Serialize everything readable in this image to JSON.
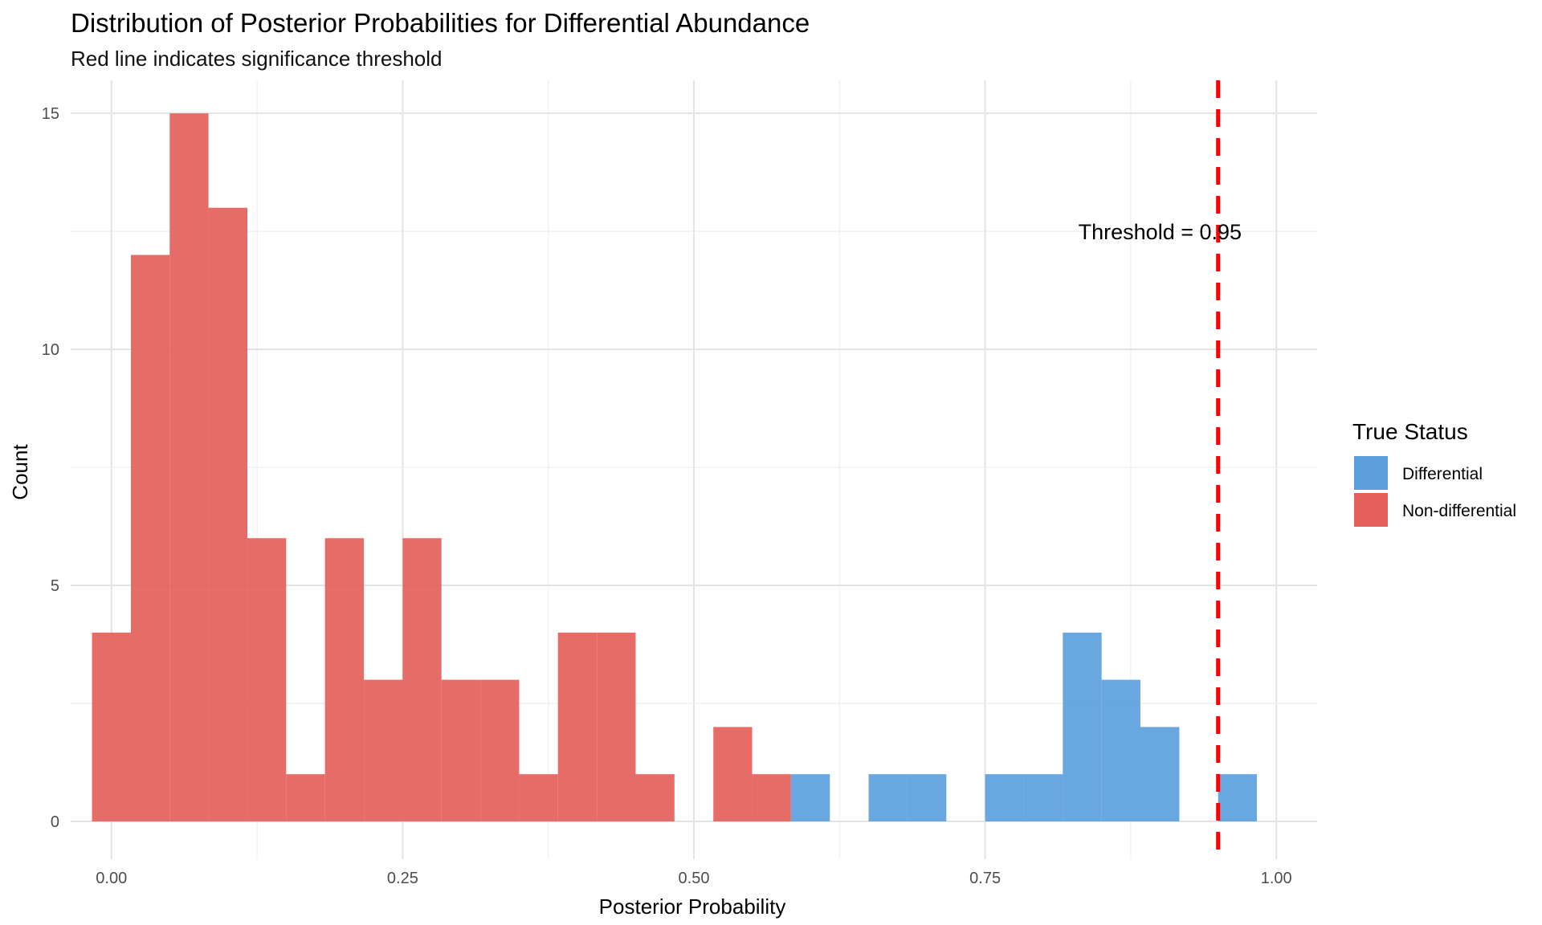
{
  "chart_data": {
    "type": "bar",
    "title": "Distribution of Posterior Probabilities for Differential Abundance",
    "subtitle": "Red line indicates significance threshold",
    "xlabel": "Posterior Probability",
    "ylabel": "Count",
    "xlim": [
      -0.035,
      1.035
    ],
    "ylim": [
      -0.8,
      15.7
    ],
    "x_ticks": [
      0.0,
      0.25,
      0.5,
      0.75,
      1.0
    ],
    "x_tick_labels": [
      "0.00",
      "0.25",
      "0.50",
      "0.75",
      "1.00"
    ],
    "y_ticks": [
      0,
      5,
      10,
      15
    ],
    "y_tick_labels": [
      "0",
      "5",
      "10",
      "15"
    ],
    "grid": true,
    "bins": [
      {
        "x0": -0.0167,
        "x1": 0.0167,
        "non": 4,
        "diff": 0
      },
      {
        "x0": 0.0167,
        "x1": 0.05,
        "non": 12,
        "diff": 0
      },
      {
        "x0": 0.05,
        "x1": 0.0833,
        "non": 15,
        "diff": 0
      },
      {
        "x0": 0.0833,
        "x1": 0.1167,
        "non": 13,
        "diff": 0
      },
      {
        "x0": 0.1167,
        "x1": 0.15,
        "non": 6,
        "diff": 0
      },
      {
        "x0": 0.15,
        "x1": 0.1833,
        "non": 1,
        "diff": 0
      },
      {
        "x0": 0.1833,
        "x1": 0.2167,
        "non": 6,
        "diff": 0
      },
      {
        "x0": 0.2167,
        "x1": 0.25,
        "non": 3,
        "diff": 0
      },
      {
        "x0": 0.25,
        "x1": 0.2833,
        "non": 6,
        "diff": 0
      },
      {
        "x0": 0.2833,
        "x1": 0.3167,
        "non": 3,
        "diff": 0
      },
      {
        "x0": 0.3167,
        "x1": 0.35,
        "non": 3,
        "diff": 0
      },
      {
        "x0": 0.35,
        "x1": 0.3833,
        "non": 1,
        "diff": 0
      },
      {
        "x0": 0.3833,
        "x1": 0.4167,
        "non": 4,
        "diff": 0
      },
      {
        "x0": 0.4167,
        "x1": 0.45,
        "non": 4,
        "diff": 0
      },
      {
        "x0": 0.45,
        "x1": 0.4833,
        "non": 1,
        "diff": 0
      },
      {
        "x0": 0.4833,
        "x1": 0.5167,
        "non": 0,
        "diff": 0
      },
      {
        "x0": 0.5167,
        "x1": 0.55,
        "non": 2,
        "diff": 0
      },
      {
        "x0": 0.55,
        "x1": 0.5833,
        "non": 1,
        "diff": 0
      },
      {
        "x0": 0.5833,
        "x1": 0.6167,
        "non": 0,
        "diff": 1
      },
      {
        "x0": 0.6167,
        "x1": 0.65,
        "non": 0,
        "diff": 0
      },
      {
        "x0": 0.65,
        "x1": 0.6833,
        "non": 0,
        "diff": 1
      },
      {
        "x0": 0.6833,
        "x1": 0.7167,
        "non": 0,
        "diff": 1
      },
      {
        "x0": 0.7167,
        "x1": 0.75,
        "non": 0,
        "diff": 0
      },
      {
        "x0": 0.75,
        "x1": 0.7833,
        "non": 0,
        "diff": 1
      },
      {
        "x0": 0.7833,
        "x1": 0.8167,
        "non": 0,
        "diff": 1
      },
      {
        "x0": 0.8167,
        "x1": 0.85,
        "non": 0,
        "diff": 4
      },
      {
        "x0": 0.85,
        "x1": 0.8833,
        "non": 0,
        "diff": 3
      },
      {
        "x0": 0.8833,
        "x1": 0.9167,
        "non": 0,
        "diff": 2
      },
      {
        "x0": 0.9167,
        "x1": 0.95,
        "non": 0,
        "diff": 0
      },
      {
        "x0": 0.95,
        "x1": 0.9833,
        "non": 0,
        "diff": 1
      }
    ],
    "threshold": {
      "value": 0.95,
      "label": "Threshold = 0.95",
      "label_x": 0.83,
      "label_y": 12.5,
      "color": "#ff0000"
    },
    "legend": {
      "title": "True Status",
      "position": "right",
      "entries": [
        {
          "label": "Differential",
          "color": "#5b9fdc"
        },
        {
          "label": "Non-differential",
          "color": "#e45f5b"
        }
      ]
    }
  }
}
